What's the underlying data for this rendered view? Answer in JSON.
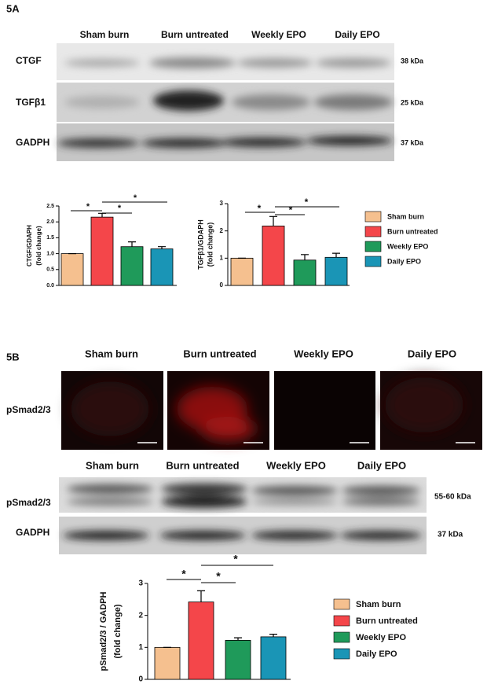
{
  "figure": {
    "panel_a": "5A",
    "panel_b": "5B",
    "groups_a": [
      "Sham burn",
      "Burn untreated",
      "Weekly EPO",
      "Daily EPO"
    ],
    "blots_a": [
      {
        "label": "CTGF",
        "size": "38 kDa"
      },
      {
        "label": "TGFβ1",
        "size": "25 kDa"
      },
      {
        "label": "GADPH",
        "size": "37 kDa"
      }
    ],
    "groups_b1": [
      "Sham burn",
      "Burn untreated",
      "Weekly EPO",
      "Daily EPO"
    ],
    "stain_label": "pSmad2/3",
    "groups_b2": [
      "Sham burn",
      "Burn untreated",
      "Weekly EPO",
      "Daily EPO"
    ],
    "blots_b": [
      {
        "label": "pSmad2/3",
        "size": "55-60  kDa"
      },
      {
        "label": "GADPH",
        "size": "37 kDa"
      }
    ]
  },
  "chart_data": [
    {
      "type": "bar",
      "ylabel": [
        "CTGF/GDAPH",
        "(fold change)"
      ],
      "values": [
        1.0,
        2.15,
        1.22,
        1.15
      ],
      "errors": [
        0,
        0.12,
        0.15,
        0.07
      ],
      "colors": [
        "#f5c08f",
        "#f4464a",
        "#1f9a5a",
        "#1a95b6"
      ],
      "ylim": [
        0,
        2.5
      ],
      "yticks": [
        {
          "value": 0,
          "label": "0.0"
        },
        0.5,
        {
          "value": 1,
          "label": "1.0"
        },
        1.5,
        {
          "value": 2,
          "label": "2.0"
        },
        2.5
      ],
      "annotations": [
        "*",
        "*",
        "*"
      ]
    },
    {
      "type": "bar",
      "ylabel": [
        "TGFβ1/GDAPH",
        "(fold change)"
      ],
      "categories": [
        "Sham burn",
        "Burn untreated",
        "Weekly EPO",
        "Daily EPO"
      ],
      "values": [
        1.0,
        2.18,
        0.93,
        1.03
      ],
      "errors": [
        0,
        0.35,
        0.2,
        0.15
      ],
      "colors": [
        "#f5c08f",
        "#f4464a",
        "#1f9a5a",
        "#1a95b6"
      ],
      "ylim": [
        0,
        3
      ],
      "yticks": [
        0,
        1,
        2,
        3
      ],
      "annotations": [
        "*",
        "*",
        "*"
      ]
    },
    {
      "type": "bar",
      "ylabel": [
        "pSmad2/3 / GADPH",
        "(fold change)"
      ],
      "categories": [
        "Sham burn",
        "Burn untreated",
        "Weekly EPO",
        "Daily EPO"
      ],
      "values": [
        1.0,
        2.42,
        1.22,
        1.33
      ],
      "errors": [
        0,
        0.35,
        0.08,
        0.08
      ],
      "colors": [
        "#f5c08f",
        "#f4464a",
        "#1f9a5a",
        "#1a95b6"
      ],
      "ylim": [
        0,
        3
      ],
      "yticks": [
        0,
        1,
        2,
        3
      ],
      "annotations": [
        "*",
        "*",
        "*"
      ]
    }
  ]
}
